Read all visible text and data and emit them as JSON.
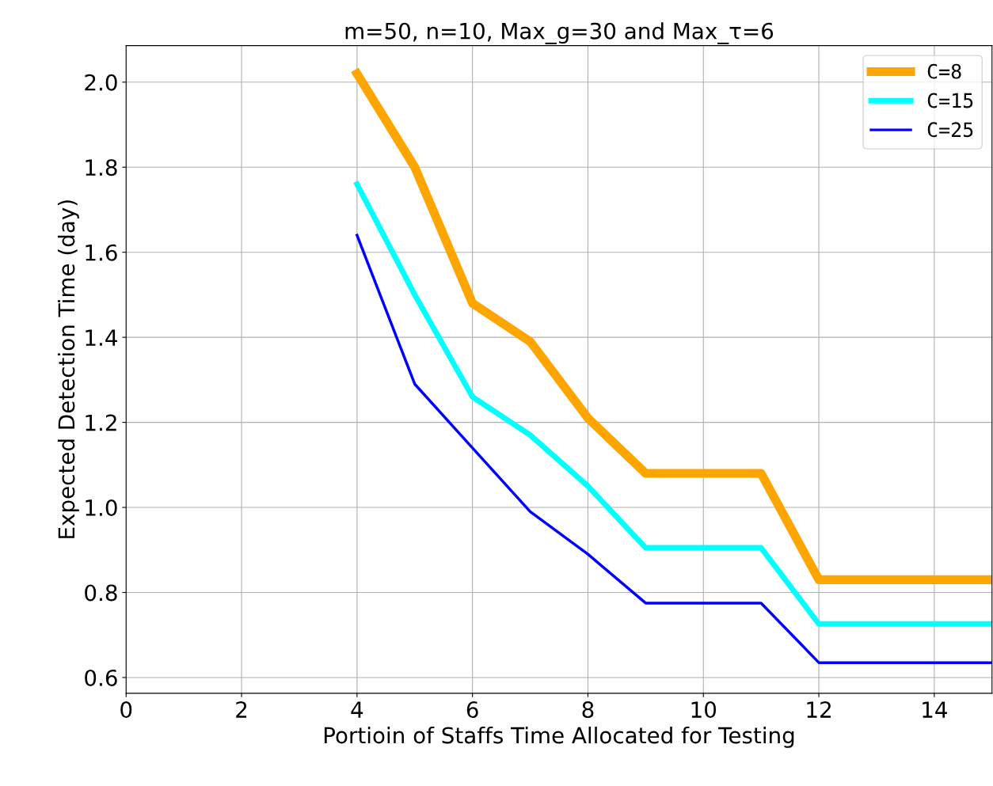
{
  "chart_data": {
    "type": "line",
    "title": "m=50, n=10, Max_g=30 and Max_τ=6",
    "xlabel": "Portioin of Staffs Time Allocated for Testing",
    "ylabel": "Expected Detection Time (day)",
    "x": [
      4,
      5,
      6,
      7,
      8,
      9,
      10,
      11,
      12,
      13,
      14,
      15
    ],
    "series": [
      {
        "name": "C=8",
        "color": "#ffa500",
        "values": [
          2.02,
          1.8,
          1.48,
          1.39,
          1.21,
          1.08,
          1.08,
          1.08,
          0.83,
          0.83,
          0.83,
          0.83
        ]
      },
      {
        "name": "C=15",
        "color": "#00ffff",
        "values": [
          1.76,
          1.5,
          1.26,
          1.17,
          1.05,
          0.905,
          0.905,
          0.905,
          0.726,
          0.726,
          0.726,
          0.726
        ]
      },
      {
        "name": "C=25",
        "color": "#0000ff",
        "values": [
          1.64,
          1.29,
          1.14,
          0.99,
          0.89,
          0.775,
          0.775,
          0.775,
          0.635,
          0.635,
          0.635,
          0.635
        ]
      }
    ],
    "xlim": [
      0,
      15
    ],
    "xticks": [
      0,
      2,
      4,
      6,
      8,
      10,
      12,
      14
    ],
    "ylim": [
      0.563,
      2.086
    ],
    "yticks": [
      {
        "value": 0.6,
        "label": "0.6"
      },
      {
        "value": 0.8,
        "label": "0.8"
      },
      {
        "value": 1.0,
        "label": "1.0"
      },
      {
        "value": 1.2,
        "label": "1.2"
      },
      {
        "value": 1.4,
        "label": "1.4"
      },
      {
        "value": 1.6,
        "label": "1.6"
      },
      {
        "value": 1.8,
        "label": "1.8"
      },
      {
        "value": 2.0,
        "label": "2.0"
      }
    ],
    "grid": true,
    "legend": "top right",
    "line_style": "solid"
  }
}
